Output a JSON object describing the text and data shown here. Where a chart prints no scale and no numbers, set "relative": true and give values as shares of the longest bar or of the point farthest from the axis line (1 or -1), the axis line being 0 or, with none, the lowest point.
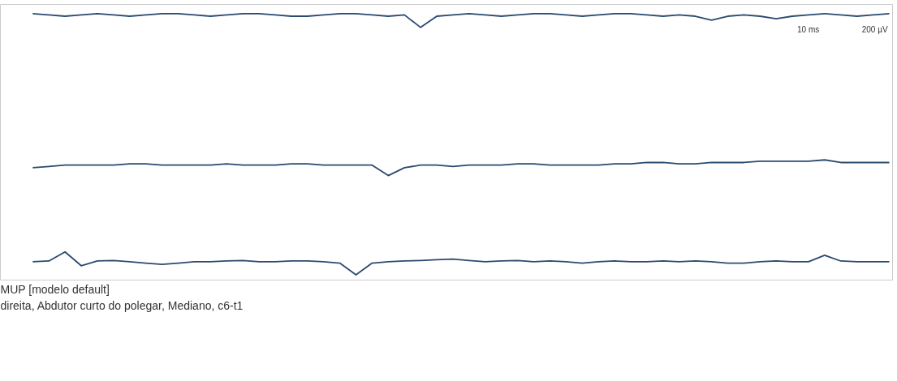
{
  "chart_data": {
    "type": "line",
    "relative": true,
    "categories": [
      null,
      null,
      null,
      null,
      null,
      null,
      null,
      null,
      null,
      null,
      null,
      null,
      null,
      null,
      null,
      null,
      null,
      null,
      null,
      null,
      null,
      null,
      null,
      null,
      null,
      null,
      null,
      null,
      null,
      null,
      null,
      null,
      null,
      null,
      null,
      null,
      null,
      null,
      null,
      null,
      null,
      null,
      null,
      null,
      null,
      null,
      null,
      null,
      null,
      null,
      null,
      null,
      null,
      null
    ],
    "series": [
      {
        "color": "#2b4a6f",
        "values": [
          1.0,
          0.995,
          0.99,
          0.995,
          1.0,
          0.995,
          0.99,
          0.995,
          1.0,
          1.0,
          0.995,
          0.99,
          0.995,
          1.0,
          1.0,
          0.995,
          0.99,
          0.99,
          0.995,
          1.0,
          1.0,
          0.995,
          0.99,
          0.995,
          0.947,
          0.99,
          0.995,
          1.0,
          0.995,
          0.99,
          0.995,
          1.0,
          1.0,
          0.995,
          0.99,
          0.995,
          1.0,
          1.0,
          0.995,
          0.99,
          0.995,
          0.99,
          0.975,
          0.99,
          0.995,
          0.99,
          0.98,
          0.99,
          0.995,
          1.0,
          0.995,
          0.99,
          0.995,
          1.0
        ]
      },
      {
        "color": "#2b4a6f",
        "values": [
          0.41,
          0.415,
          0.42,
          0.42,
          0.42,
          0.42,
          0.425,
          0.425,
          0.42,
          0.42,
          0.42,
          0.42,
          0.425,
          0.42,
          0.42,
          0.42,
          0.425,
          0.425,
          0.42,
          0.42,
          0.42,
          0.42,
          0.38,
          0.41,
          0.42,
          0.42,
          0.415,
          0.42,
          0.42,
          0.42,
          0.425,
          0.425,
          0.42,
          0.42,
          0.42,
          0.42,
          0.425,
          0.425,
          0.43,
          0.43,
          0.425,
          0.425,
          0.43,
          0.43,
          0.43,
          0.435,
          0.435,
          0.435,
          0.435,
          0.44,
          0.43,
          0.43,
          0.43,
          0.43
        ]
      },
      {
        "color": "#2b4a6f",
        "values": [
          0.05,
          0.053,
          0.088,
          0.035,
          0.053,
          0.055,
          0.05,
          0.045,
          0.04,
          0.045,
          0.05,
          0.05,
          0.053,
          0.055,
          0.05,
          0.05,
          0.053,
          0.053,
          0.05,
          0.045,
          0.0,
          0.045,
          0.05,
          0.053,
          0.055,
          0.058,
          0.06,
          0.055,
          0.05,
          0.053,
          0.055,
          0.05,
          0.053,
          0.05,
          0.045,
          0.05,
          0.053,
          0.05,
          0.05,
          0.053,
          0.05,
          0.053,
          0.05,
          0.045,
          0.045,
          0.05,
          0.053,
          0.05,
          0.05,
          0.075,
          0.053,
          0.05,
          0.05,
          0.05
        ]
      }
    ],
    "annotations": [
      "10 ms",
      "200 µV",
      "MUP [modelo default]",
      "direita, Abdutor curto do polegar, Mediano, c6-t1"
    ]
  }
}
